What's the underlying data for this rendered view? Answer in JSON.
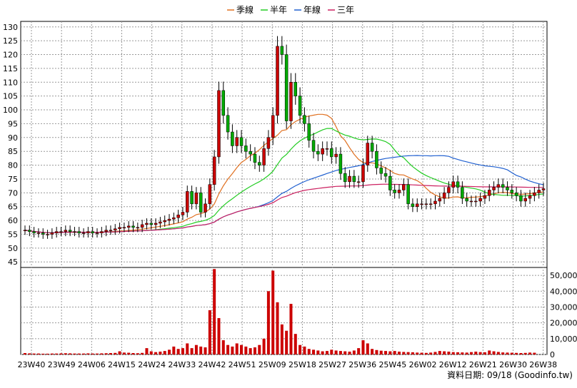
{
  "chart_data": {
    "type": "candlestick",
    "price_axis": {
      "ylim": [
        43,
        132
      ],
      "ticks": [
        45,
        50,
        55,
        60,
        65,
        70,
        75,
        80,
        85,
        90,
        95,
        100,
        105,
        110,
        115,
        120,
        125,
        130
      ]
    },
    "volume_axis": {
      "ylim": [
        0,
        55000
      ],
      "ticks": [
        0,
        10000,
        20000,
        30000,
        40000,
        50000
      ],
      "tick_labels": [
        "0",
        "10,000",
        "20,000",
        "30,000",
        "40,000",
        "50,000"
      ]
    },
    "x_tick_labels": [
      "23W40",
      "23W49",
      "24W06",
      "24W15",
      "24W24",
      "24W33",
      "24W42",
      "24W51",
      "25W09",
      "25W18",
      "25W27",
      "25W36",
      "25W45",
      "26W02",
      "26W12",
      "26W21",
      "26W30",
      "26W38"
    ],
    "legend": [
      {
        "label": "季線",
        "color": "#e07020"
      },
      {
        "label": "半年",
        "color": "#22cc22"
      },
      {
        "label": "年線",
        "color": "#2060d0"
      },
      {
        "label": "三年",
        "color": "#cc2060"
      }
    ],
    "colors": {
      "up": "#cc0000",
      "down": "#00aa00",
      "volume": "#cc0000",
      "grid": "#999999"
    },
    "closes": [
      56.5,
      56.0,
      55.5,
      55.5,
      55.0,
      55.0,
      55.5,
      56.0,
      56.0,
      56.5,
      56.0,
      56.0,
      55.5,
      55.5,
      56.0,
      55.5,
      55.5,
      56.0,
      56.5,
      56.5,
      57.0,
      57.5,
      57.5,
      58.0,
      57.5,
      57.5,
      58.5,
      59.0,
      58.5,
      59.0,
      59.5,
      60.0,
      60.5,
      61.0,
      62.0,
      63.0,
      70.5,
      66.0,
      70.0,
      63.0,
      66.0,
      73.0,
      83.0,
      107.0,
      98.0,
      92.0,
      87.0,
      90.0,
      87.0,
      85.0,
      84.0,
      81.0,
      80.0,
      86.0,
      90.0,
      98.0,
      123.0,
      120.0,
      96.0,
      110.0,
      105.0,
      98.0,
      95.0,
      89.0,
      85.0,
      84.0,
      86.0,
      86.0,
      83.0,
      84.0,
      77.0,
      74.0,
      76.0,
      74.0,
      74.0,
      80.0,
      88.0,
      85.0,
      79.0,
      77.0,
      76.0,
      71.0,
      70.0,
      71.0,
      73.0,
      66.0,
      65.0,
      66.0,
      66.0,
      66.0,
      66.0,
      67.0,
      68.0,
      70.0,
      72.0,
      74.0,
      72.0,
      68.0,
      67.0,
      67.0,
      67.0,
      68.0,
      69.0,
      71.0,
      72.0,
      73.0,
      72.0,
      71.0,
      70.0,
      69.0,
      67.0,
      68.0,
      69.0,
      70.0,
      71.0,
      71.5
    ],
    "volumes": [
      900,
      700,
      600,
      600,
      500,
      500,
      600,
      600,
      700,
      800,
      700,
      600,
      600,
      600,
      700,
      600,
      600,
      700,
      800,
      900,
      1000,
      2000,
      1200,
      1100,
      900,
      800,
      1000,
      4000,
      2000,
      1500,
      1800,
      2200,
      3000,
      5000,
      3500,
      4000,
      7000,
      4000,
      6000,
      5000,
      4500,
      28000,
      54000,
      23000,
      9000,
      6000,
      5000,
      7000,
      6000,
      5000,
      4000,
      4500,
      6000,
      10000,
      40000,
      53000,
      33000,
      19000,
      15000,
      32000,
      13000,
      6000,
      5000,
      3500,
      3000,
      2500,
      2000,
      2200,
      3000,
      2500,
      2200,
      2000,
      1800,
      2500,
      4000,
      9000,
      7000,
      3500,
      2800,
      2400,
      2200,
      2000,
      2200,
      1800,
      1600,
      1500,
      1400,
      1200,
      1100,
      1000,
      1200,
      1600,
      2200,
      2000,
      1800,
      1500,
      1400,
      1300,
      1200,
      1500,
      1800,
      1500,
      1400,
      2500,
      2000,
      1600,
      1300,
      1200,
      1100,
      1000,
      900,
      1000,
      1200,
      1100
    ]
  },
  "footer": {
    "text": "資料日期: 09/18 (Goodinfo.tw)"
  }
}
